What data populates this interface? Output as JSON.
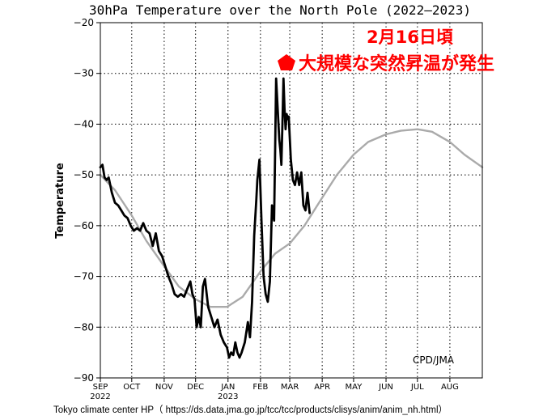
{
  "chart_data": {
    "type": "line",
    "title": "30hPa Temperature over the North Pole (2022–2023)",
    "ylabel": "Temperature",
    "xlabel": "",
    "ylim": [
      -90,
      -20
    ],
    "yticks": [
      -20,
      -30,
      -40,
      -50,
      -60,
      -70,
      -80,
      -90
    ],
    "xlim": [
      "2022-09-01",
      "2023-09-01"
    ],
    "months": [
      {
        "label": "SEP",
        "date": "2022-09-01",
        "year": "2022"
      },
      {
        "label": "OCT",
        "date": "2022-10-01"
      },
      {
        "label": "NOV",
        "date": "2022-11-01"
      },
      {
        "label": "DEC",
        "date": "2022-12-01"
      },
      {
        "label": "JAN",
        "date": "2023-01-01",
        "year": "2023"
      },
      {
        "label": "FEB",
        "date": "2023-02-01"
      },
      {
        "label": "MAR",
        "date": "2023-03-01"
      },
      {
        "label": "APR",
        "date": "2023-04-01"
      },
      {
        "label": "MAY",
        "date": "2023-05-01"
      },
      {
        "label": "JUN",
        "date": "2023-06-01"
      },
      {
        "label": "JUL",
        "date": "2023-07-01"
      },
      {
        "label": "AUG",
        "date": "2023-08-01"
      }
    ],
    "grid": true,
    "series": [
      {
        "color": "#000000",
        "points": [
          [
            "2022-09-01",
            -48.5
          ],
          [
            "2022-09-03",
            -48
          ],
          [
            "2022-09-05",
            -50.5
          ],
          [
            "2022-09-07",
            -51
          ],
          [
            "2022-09-09",
            -50.5
          ],
          [
            "2022-09-12",
            -53.5
          ],
          [
            "2022-09-15",
            -55.5
          ],
          [
            "2022-09-18",
            -56
          ],
          [
            "2022-09-21",
            -57
          ],
          [
            "2022-09-24",
            -58
          ],
          [
            "2022-09-27",
            -58.5
          ],
          [
            "2022-09-30",
            -60
          ],
          [
            "2022-10-03",
            -61
          ],
          [
            "2022-10-06",
            -60.5
          ],
          [
            "2022-10-09",
            -61
          ],
          [
            "2022-10-12",
            -59.5
          ],
          [
            "2022-10-15",
            -61
          ],
          [
            "2022-10-18",
            -61.5
          ],
          [
            "2022-10-21",
            -64
          ],
          [
            "2022-10-24",
            -61.5
          ],
          [
            "2022-10-27",
            -65
          ],
          [
            "2022-10-30",
            -66
          ],
          [
            "2022-11-02",
            -68
          ],
          [
            "2022-11-05",
            -70
          ],
          [
            "2022-11-08",
            -71.5
          ],
          [
            "2022-11-11",
            -73.5
          ],
          [
            "2022-11-14",
            -74
          ],
          [
            "2022-11-17",
            -73.5
          ],
          [
            "2022-11-20",
            -74
          ],
          [
            "2022-11-23",
            -72.5
          ],
          [
            "2022-11-26",
            -71
          ],
          [
            "2022-11-28",
            -73.5
          ],
          [
            "2022-11-30",
            -74.5
          ],
          [
            "2022-12-02",
            -80
          ],
          [
            "2022-12-04",
            -78
          ],
          [
            "2022-12-06",
            -80
          ],
          [
            "2022-12-08",
            -72
          ],
          [
            "2022-12-10",
            -70.5
          ],
          [
            "2022-12-13",
            -76
          ],
          [
            "2022-12-16",
            -78
          ],
          [
            "2022-12-19",
            -80
          ],
          [
            "2022-12-22",
            -78.5
          ],
          [
            "2022-12-25",
            -81.5
          ],
          [
            "2022-12-28",
            -83
          ],
          [
            "2022-12-31",
            -84
          ],
          [
            "2023-01-02",
            -86
          ],
          [
            "2023-01-04",
            -85
          ],
          [
            "2023-01-06",
            -85.5
          ],
          [
            "2023-01-08",
            -83
          ],
          [
            "2023-01-10",
            -85
          ],
          [
            "2023-01-12",
            -86
          ],
          [
            "2023-01-14",
            -85
          ],
          [
            "2023-01-17",
            -83
          ],
          [
            "2023-01-20",
            -79
          ],
          [
            "2023-01-22",
            -82
          ],
          [
            "2023-01-24",
            -75
          ],
          [
            "2023-01-26",
            -62
          ],
          [
            "2023-01-28",
            -55
          ],
          [
            "2023-01-29",
            -51
          ],
          [
            "2023-01-31",
            -47
          ],
          [
            "2023-02-02",
            -59
          ],
          [
            "2023-02-04",
            -70
          ],
          [
            "2023-02-06",
            -73.5
          ],
          [
            "2023-02-08",
            -75
          ],
          [
            "2023-02-10",
            -71
          ],
          [
            "2023-02-12",
            -56
          ],
          [
            "2023-02-14",
            -59
          ],
          [
            "2023-02-15",
            -45
          ],
          [
            "2023-02-16",
            -31
          ],
          [
            "2023-02-17",
            -35
          ],
          [
            "2023-02-18",
            -39
          ],
          [
            "2023-02-19",
            -43
          ],
          [
            "2023-02-20",
            -45
          ],
          [
            "2023-02-21",
            -48
          ],
          [
            "2023-02-22",
            -40
          ],
          [
            "2023-02-23",
            -31
          ],
          [
            "2023-02-24",
            -37
          ],
          [
            "2023-02-25",
            -41
          ],
          [
            "2023-02-26",
            -38
          ],
          [
            "2023-02-27",
            -39
          ],
          [
            "2023-02-28",
            -38.5
          ],
          [
            "2023-03-02",
            -47
          ],
          [
            "2023-03-04",
            -51
          ],
          [
            "2023-03-06",
            -52
          ],
          [
            "2023-03-08",
            -49.5
          ],
          [
            "2023-03-10",
            -52
          ],
          [
            "2023-03-12",
            -49.5
          ],
          [
            "2023-03-14",
            -56
          ],
          [
            "2023-03-16",
            -57
          ],
          [
            "2023-03-18",
            -53.5
          ],
          [
            "2023-03-20",
            -57.5
          ]
        ]
      },
      {
        "color": "#aaaaaa",
        "points": [
          [
            "2022-09-01",
            -50
          ],
          [
            "2022-09-15",
            -53
          ],
          [
            "2022-10-01",
            -58
          ],
          [
            "2022-10-15",
            -63
          ],
          [
            "2022-11-01",
            -68
          ],
          [
            "2022-11-15",
            -72
          ],
          [
            "2022-12-01",
            -74.5
          ],
          [
            "2022-12-15",
            -76
          ],
          [
            "2022-12-31",
            -76
          ],
          [
            "2023-01-15",
            -74
          ],
          [
            "2023-02-01",
            -69
          ],
          [
            "2023-02-15",
            -65.5
          ],
          [
            "2023-03-01",
            -63.5
          ],
          [
            "2023-03-15",
            -60
          ],
          [
            "2023-04-01",
            -54.5
          ],
          [
            "2023-04-15",
            -50
          ],
          [
            "2023-05-01",
            -46
          ],
          [
            "2023-05-15",
            -43.5
          ],
          [
            "2023-06-01",
            -42
          ],
          [
            "2023-06-15",
            -41.3
          ],
          [
            "2023-07-01",
            -41
          ],
          [
            "2023-07-15",
            -41.5
          ],
          [
            "2023-08-01",
            -43.5
          ],
          [
            "2023-08-15",
            -46
          ],
          [
            "2023-09-01",
            -48.5
          ]
        ]
      }
    ],
    "annotations": {
      "date_note": "2月16日頃",
      "event_note": "大規模な突然昇温が発生",
      "credit": "CPD/JMA",
      "source": "Tokyo climate center HP（ https://ds.data.jma.go.jp/tcc/tcc/products/clisys/anim/anim_nh.html）"
    },
    "colors": {
      "annotation": "#ff0000",
      "observed": "#000000",
      "climatology": "#aaaaaa"
    }
  }
}
